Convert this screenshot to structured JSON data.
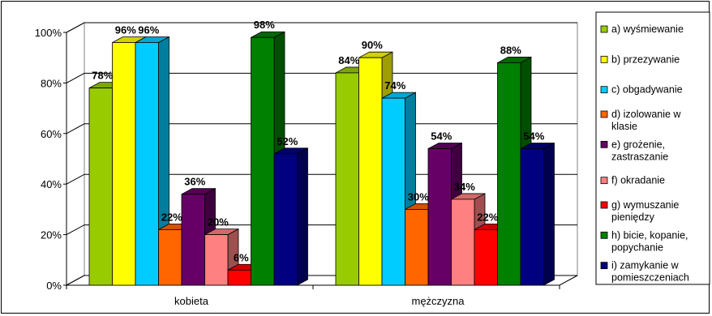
{
  "chart_data": {
    "type": "bar",
    "style": "3d-clustered-column",
    "categories": [
      "kobieta",
      "mężczyzna"
    ],
    "ylim": [
      0,
      100
    ],
    "yticks": [
      "0%",
      "20%",
      "40%",
      "60%",
      "80%",
      "100%"
    ],
    "grid": true,
    "legend_position": "right",
    "series": [
      {
        "name": "a) wyśmiewanie",
        "name_lines": [
          "a) wyśmiewanie"
        ],
        "color": "#99CC00",
        "values": [
          78,
          84
        ],
        "labels": [
          "78%",
          "84%"
        ]
      },
      {
        "name": "b) przezywanie",
        "name_lines": [
          "b) przezywanie"
        ],
        "color": "#FFFF00",
        "values": [
          96,
          90
        ],
        "labels": [
          "96%",
          "90%"
        ]
      },
      {
        "name": "c) obgadywanie",
        "name_lines": [
          "c) obgadywanie"
        ],
        "color": "#00CCFF",
        "values": [
          96,
          74
        ],
        "labels": [
          "96%",
          "74%"
        ]
      },
      {
        "name": "d) izolowanie w klasie",
        "name_lines": [
          "d) izolowanie w",
          "klasie"
        ],
        "color": "#FF6600",
        "values": [
          22,
          30
        ],
        "labels": [
          "22%",
          "30%"
        ]
      },
      {
        "name": "e) grożenie, zastraszanie",
        "name_lines": [
          "e) grożenie,",
          "zastraszanie"
        ],
        "color": "#660066",
        "values": [
          36,
          54
        ],
        "labels": [
          "36%",
          "54%"
        ]
      },
      {
        "name": "f) okradanie",
        "name_lines": [
          "f) okradanie"
        ],
        "color": "#FF8080",
        "values": [
          20,
          34
        ],
        "labels": [
          "20%",
          "34%"
        ]
      },
      {
        "name": "g) wymuszanie pieniędzy",
        "name_lines": [
          "g) wymuszanie",
          "pieniędzy"
        ],
        "color": "#FF0000",
        "values": [
          6,
          22
        ],
        "labels": [
          "6%",
          "22%"
        ]
      },
      {
        "name": "h) bicie, kopanie, popychanie",
        "name_lines": [
          "h) bicie, kopanie,",
          "popychanie"
        ],
        "color": "#008000",
        "values": [
          98,
          88
        ],
        "labels": [
          "98%",
          "88%"
        ]
      },
      {
        "name": "i) zamykanie w pomieszczeniach",
        "name_lines": [
          "i) zamykanie w",
          "pomieszczeniach"
        ],
        "color": "#000080",
        "values": [
          52,
          54
        ],
        "labels": [
          "52%",
          "54%"
        ]
      }
    ]
  }
}
